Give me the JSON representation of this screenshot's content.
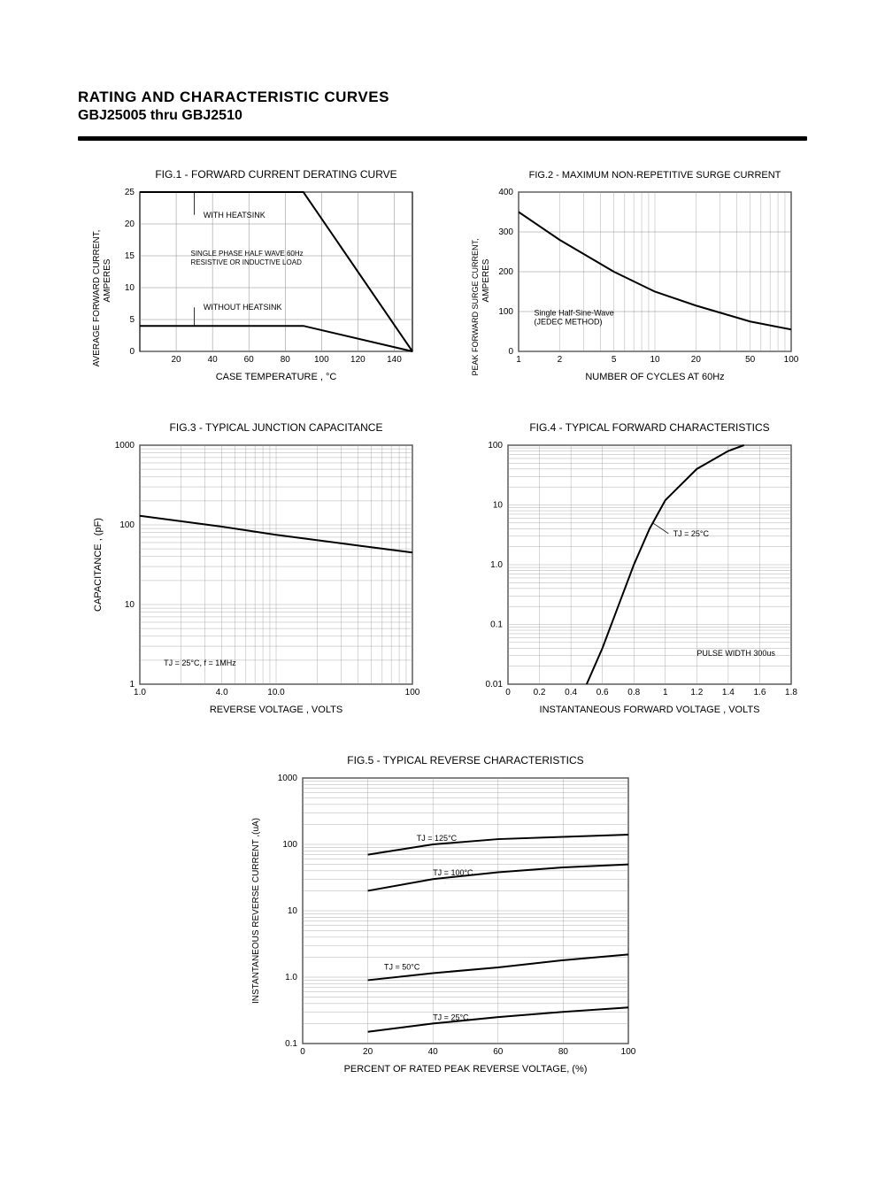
{
  "header": {
    "title": "RATING AND CHARACTERISTIC CURVES",
    "subtitle": "GBJ25005 thru GBJ2510"
  },
  "colors": {
    "stroke": "#000000",
    "grid": "#808080",
    "bg": "#ffffff",
    "curve": "#000000"
  },
  "fig1": {
    "title": "FIG.1 - FORWARD CURRENT DERATING CURVE",
    "ylabel": "AVERAGE FORWARD CURRENT,\nAMPERES",
    "xlabel": "CASE TEMPERATURE , °C",
    "xlim": [
      0,
      150
    ],
    "ylim": [
      0,
      25
    ],
    "xticks": [
      20,
      40,
      60,
      80,
      100,
      120,
      140
    ],
    "yticks": [
      0,
      5,
      10,
      15,
      20,
      25
    ],
    "line_width": 2,
    "anno1": "WITH HEATSINK",
    "anno2": "SINGLE PHASE HALF WAVE 60Hz\nRESISTIVE OR INDUCTIVE LOAD",
    "anno3": "WITHOUT HEATSINK",
    "curve_with_hs": [
      [
        0,
        25
      ],
      [
        90,
        25
      ],
      [
        150,
        0
      ]
    ],
    "curve_no_hs": [
      [
        0,
        4
      ],
      [
        90,
        4
      ],
      [
        150,
        0
      ]
    ]
  },
  "fig2": {
    "title": "FIG.2 - MAXIMUM NON-REPETITIVE SURGE CURRENT",
    "ylabel": "PEAK FORWARD SURGE CURRENT,\nAMPERES",
    "xlabel": "NUMBER OF CYCLES AT 60Hz",
    "ylim": [
      0,
      400
    ],
    "yticks": [
      0,
      100,
      200,
      300,
      400
    ],
    "x_log_ticks": [
      1,
      2,
      5,
      10,
      20,
      50,
      100
    ],
    "anno": "Single Half-Sine-Wave\n(JEDEC METHOD)",
    "curve": [
      [
        1,
        350
      ],
      [
        2,
        280
      ],
      [
        5,
        200
      ],
      [
        10,
        150
      ],
      [
        20,
        115
      ],
      [
        50,
        75
      ],
      [
        100,
        55
      ]
    ],
    "line_width": 2
  },
  "fig3": {
    "title": "FIG.3 - TYPICAL JUNCTION CAPACITANCE",
    "ylabel": "CAPACITANCE , (pF)",
    "xlabel": "REVERSE VOLTAGE , VOLTS",
    "x_log_ticks": [
      1.0,
      4.0,
      10.0,
      100
    ],
    "x_tick_labels": [
      "1.0",
      "4.0",
      "10.0",
      "100"
    ],
    "y_log_ticks": [
      1.0,
      10,
      100,
      1000
    ],
    "anno": "TJ = 25°C,  f = 1MHz",
    "curve": [
      [
        1,
        130
      ],
      [
        4,
        95
      ],
      [
        10,
        75
      ],
      [
        40,
        55
      ],
      [
        100,
        45
      ]
    ],
    "line_width": 2
  },
  "fig4": {
    "title": "FIG.4 - TYPICAL FORWARD CHARACTERISTICS",
    "ylabel": "",
    "xlabel": "INSTANTANEOUS FORWARD VOLTAGE , VOLTS",
    "xlim": [
      0,
      1.8
    ],
    "xticks": [
      0,
      0.2,
      0.4,
      0.6,
      0.8,
      1.0,
      1.2,
      1.4,
      1.6,
      1.8
    ],
    "y_log_ticks": [
      0.01,
      0.1,
      1.0,
      10,
      100
    ],
    "y_tick_labels": [
      "0.01",
      "0.1",
      "1.0",
      "10",
      "100"
    ],
    "anno1": "TJ = 25°C",
    "anno2": "PULSE WIDTH 300us",
    "curve": [
      [
        0.5,
        0.01
      ],
      [
        0.6,
        0.04
      ],
      [
        0.7,
        0.2
      ],
      [
        0.8,
        1.0
      ],
      [
        0.9,
        4
      ],
      [
        1.0,
        12
      ],
      [
        1.2,
        40
      ],
      [
        1.4,
        80
      ],
      [
        1.5,
        100
      ]
    ],
    "line_width": 2
  },
  "fig5": {
    "title": "FIG.5 - TYPICAL REVERSE CHARACTERISTICS",
    "ylabel": "INSTANTANEOUS REVERSE CURRENT ,(uA)",
    "xlabel": "PERCENT OF RATED PEAK REVERSE VOLTAGE, (%)",
    "xlim": [
      0,
      100
    ],
    "xticks": [
      0,
      20,
      40,
      60,
      80,
      100
    ],
    "y_log_ticks": [
      0.1,
      1.0,
      10,
      100,
      1000
    ],
    "y_tick_labels": [
      "0.1",
      "1.0",
      "10",
      "100",
      "1000"
    ],
    "curves": [
      {
        "label": "TJ = 125°C",
        "data": [
          [
            20,
            70
          ],
          [
            40,
            100
          ],
          [
            60,
            120
          ],
          [
            80,
            130
          ],
          [
            100,
            140
          ]
        ]
      },
      {
        "label": "TJ = 100°C",
        "data": [
          [
            20,
            20
          ],
          [
            40,
            30
          ],
          [
            60,
            38
          ],
          [
            80,
            45
          ],
          [
            100,
            50
          ]
        ]
      },
      {
        "label": "TJ = 50°C",
        "data": [
          [
            20,
            0.9
          ],
          [
            40,
            1.15
          ],
          [
            60,
            1.4
          ],
          [
            80,
            1.8
          ],
          [
            100,
            2.2
          ]
        ]
      },
      {
        "label": "TJ = 25°C",
        "data": [
          [
            20,
            0.15
          ],
          [
            40,
            0.2
          ],
          [
            60,
            0.25
          ],
          [
            80,
            0.3
          ],
          [
            100,
            0.35
          ]
        ]
      }
    ],
    "line_width": 2
  }
}
